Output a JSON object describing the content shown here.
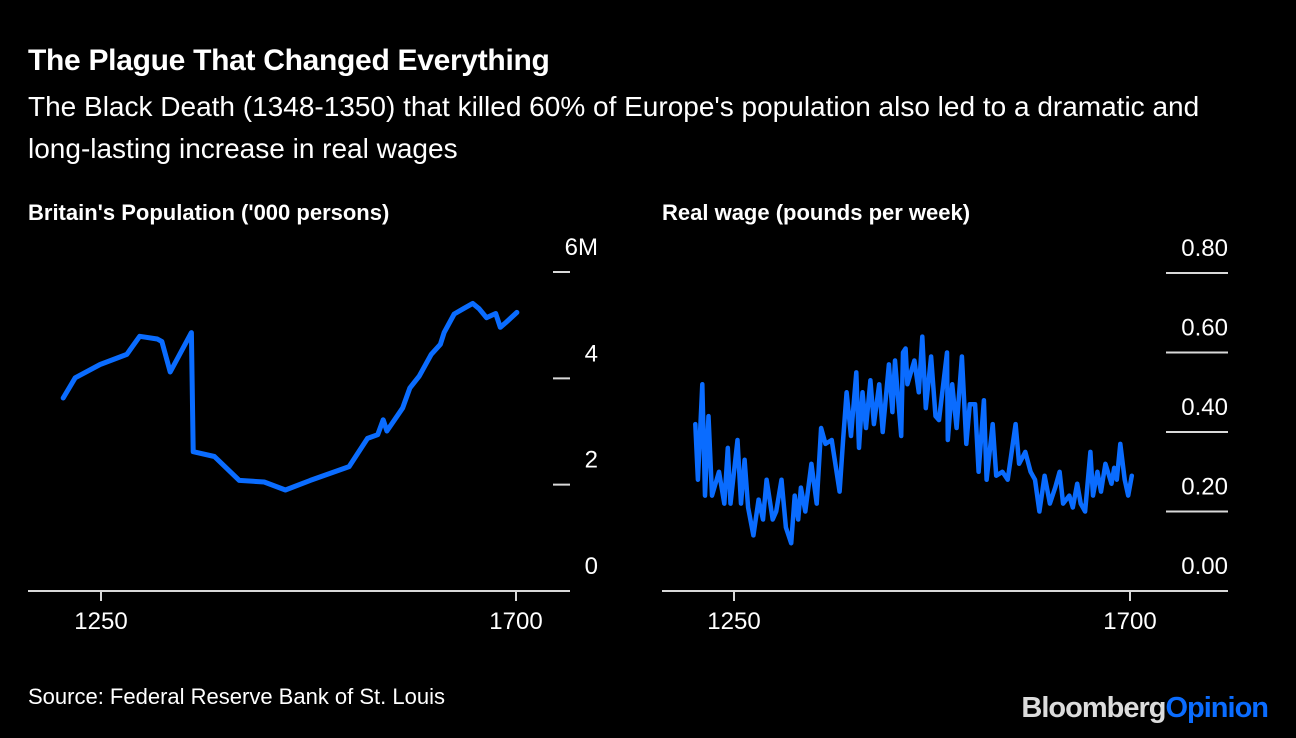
{
  "header": {
    "title": "The Plague That Changed Everything",
    "subtitle": "The Black Death (1348-1350) that killed 60% of Europe's population also led to a dramatic and long-lasting increase in real wages"
  },
  "footer": {
    "source": "Source: Federal Reserve Bank of St. Louis",
    "logo_part1": "Bloomberg",
    "logo_part2": "Opinion"
  },
  "colors": {
    "line": "#0a6cff",
    "background": "#000000",
    "axis": "#d9d9d9"
  },
  "chart_data": [
    {
      "type": "line",
      "title": "Britain's Population ('000 persons)",
      "ylim": [
        0,
        6
      ],
      "yticks": [
        {
          "v": 0,
          "label": "0"
        },
        {
          "v": 2,
          "label": "2"
        },
        {
          "v": 4,
          "label": "4"
        },
        {
          "v": 6,
          "label": "6M"
        }
      ],
      "xticks": [
        {
          "v": 1250,
          "label": "1250"
        },
        {
          "v": 1700,
          "label": "1700"
        }
      ],
      "xlim": [
        1160,
        1755
      ],
      "grid": false,
      "x": [
        1209,
        1222,
        1249,
        1278,
        1292,
        1311,
        1316,
        1325,
        1348,
        1350,
        1373,
        1400,
        1427,
        1450,
        1477,
        1519,
        1539,
        1550,
        1556,
        1560,
        1577,
        1585,
        1595,
        1608,
        1618,
        1622,
        1633,
        1643,
        1653,
        1660,
        1668,
        1678,
        1683,
        1689,
        1701
      ],
      "y": [
        3.63,
        4.01,
        4.26,
        4.45,
        4.79,
        4.74,
        4.69,
        4.12,
        4.86,
        2.62,
        2.53,
        2.08,
        2.05,
        1.9,
        2.08,
        2.34,
        2.87,
        2.94,
        3.22,
        3.01,
        3.44,
        3.82,
        4.04,
        4.45,
        4.64,
        4.86,
        5.21,
        5.31,
        5.41,
        5.31,
        5.14,
        5.22,
        4.96,
        5.05,
        5.24
      ]
    },
    {
      "type": "line",
      "title": "Real wage (pounds per week)",
      "ylim": [
        0,
        0.8
      ],
      "yticks": [
        {
          "v": 0,
          "label": "0.00"
        },
        {
          "v": 0.2,
          "label": "0.20"
        },
        {
          "v": 0.4,
          "label": "0.40"
        },
        {
          "v": 0.6,
          "label": "0.60"
        },
        {
          "v": 0.8,
          "label": "0.80"
        }
      ],
      "xticks": [
        {
          "v": 1250,
          "label": "1250"
        },
        {
          "v": 1700,
          "label": "1700"
        }
      ],
      "xlim": [
        1160,
        1755
      ],
      "grid": false,
      "x": [
        1206,
        1209,
        1214,
        1217,
        1221,
        1225,
        1233,
        1239,
        1243,
        1246,
        1254,
        1258,
        1262,
        1266,
        1272,
        1278,
        1283,
        1287,
        1294,
        1298,
        1304,
        1309,
        1315,
        1319,
        1323,
        1326,
        1331,
        1338,
        1344,
        1349,
        1354,
        1361,
        1370,
        1374,
        1378,
        1383,
        1389,
        1392,
        1396,
        1400,
        1405,
        1409,
        1415,
        1419,
        1426,
        1430,
        1433,
        1440,
        1442,
        1445,
        1447,
        1455,
        1460,
        1464,
        1468,
        1474,
        1479,
        1483,
        1492,
        1493,
        1498,
        1503,
        1509,
        1514,
        1518,
        1524,
        1528,
        1534,
        1537,
        1544,
        1548,
        1555,
        1561,
        1570,
        1574,
        1581,
        1587,
        1592,
        1597,
        1603,
        1609,
        1615,
        1620,
        1624,
        1631,
        1635,
        1640,
        1644,
        1649,
        1655,
        1658,
        1663,
        1667,
        1672,
        1679,
        1682,
        1685,
        1689,
        1694,
        1698,
        1702
      ],
      "y": [
        0.42,
        0.28,
        0.52,
        0.24,
        0.44,
        0.24,
        0.3,
        0.22,
        0.36,
        0.22,
        0.38,
        0.22,
        0.33,
        0.21,
        0.14,
        0.23,
        0.18,
        0.28,
        0.18,
        0.2,
        0.28,
        0.16,
        0.12,
        0.24,
        0.18,
        0.26,
        0.2,
        0.32,
        0.22,
        0.41,
        0.37,
        0.38,
        0.25,
        0.38,
        0.5,
        0.39,
        0.55,
        0.36,
        0.5,
        0.41,
        0.53,
        0.42,
        0.52,
        0.4,
        0.57,
        0.45,
        0.58,
        0.39,
        0.6,
        0.61,
        0.52,
        0.58,
        0.5,
        0.64,
        0.46,
        0.59,
        0.44,
        0.43,
        0.6,
        0.38,
        0.52,
        0.41,
        0.59,
        0.37,
        0.47,
        0.47,
        0.3,
        0.48,
        0.28,
        0.42,
        0.29,
        0.3,
        0.28,
        0.42,
        0.32,
        0.35,
        0.3,
        0.28,
        0.2,
        0.29,
        0.22,
        0.26,
        0.3,
        0.22,
        0.24,
        0.21,
        0.27,
        0.22,
        0.2,
        0.35,
        0.24,
        0.3,
        0.25,
        0.32,
        0.27,
        0.31,
        0.28,
        0.37,
        0.28,
        0.24,
        0.29
      ]
    }
  ]
}
